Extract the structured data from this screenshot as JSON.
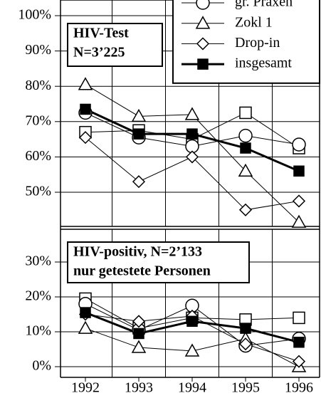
{
  "chart_data": [
    {
      "type": "line",
      "annotation": [
        "HIV-Test",
        "N=3’225"
      ],
      "ylim": [
        40,
        100
      ],
      "yticks": [
        {
          "value": 50,
          "label": "50%"
        },
        {
          "value": 60,
          "label": "60%"
        },
        {
          "value": 70,
          "label": "70%"
        },
        {
          "value": 80,
          "label": "80%"
        },
        {
          "value": 90,
          "label": "90%"
        },
        {
          "value": 100,
          "label": "100%"
        }
      ],
      "grid": true,
      "legend": "upper right",
      "series": [
        {
          "marker": "square",
          "color": "#000000",
          "values": [
            67,
            67.5,
            65,
            72.5,
            62.5
          ]
        },
        {
          "name": "gr. Praxen",
          "marker": "circle",
          "color": "#000000",
          "values": [
            72.5,
            65.5,
            63,
            66,
            63.5
          ]
        },
        {
          "name": "Zokl 1",
          "marker": "triangle",
          "color": "#000000",
          "values": [
            80.5,
            71.5,
            72,
            56,
            41.5
          ]
        },
        {
          "name": "Drop-in",
          "marker": "diamond",
          "color": "#000000",
          "values": [
            65.5,
            53,
            60,
            45,
            47.5
          ]
        },
        {
          "name": "insgesamt",
          "marker": "filled-square",
          "color": "#000000",
          "values": [
            73.5,
            66.5,
            66.5,
            62.5,
            56
          ]
        }
      ]
    },
    {
      "type": "line",
      "annotation": [
        "HIV-positiv, N=2’133",
        "nur getestete Personen"
      ],
      "categories": [
        "1992",
        "1993",
        "1994",
        "1995",
        "1996"
      ],
      "ylim": [
        -3,
        40
      ],
      "yticks": [
        {
          "value": 0,
          "label": "0%"
        },
        {
          "value": 10,
          "label": "10%"
        },
        {
          "value": 20,
          "label": "20%"
        },
        {
          "value": 30,
          "label": "30%"
        }
      ],
      "grid": true,
      "series": [
        {
          "marker": "square",
          "color": "#000000",
          "values": [
            19.5,
            11,
            14,
            13.5,
            14
          ]
        },
        {
          "marker": "circle",
          "color": "#000000",
          "values": [
            18,
            10.5,
            17.5,
            6,
            8
          ]
        },
        {
          "marker": "triangle",
          "color": "#000000",
          "values": [
            11,
            5.5,
            4.5,
            8,
            0
          ]
        },
        {
          "marker": "diamond",
          "color": "#000000",
          "values": [
            15,
            13,
            14.5,
            6.5,
            1.5
          ]
        },
        {
          "marker": "filled-square",
          "color": "#000000",
          "values": [
            15.5,
            9.5,
            13,
            11,
            7
          ]
        }
      ]
    }
  ]
}
